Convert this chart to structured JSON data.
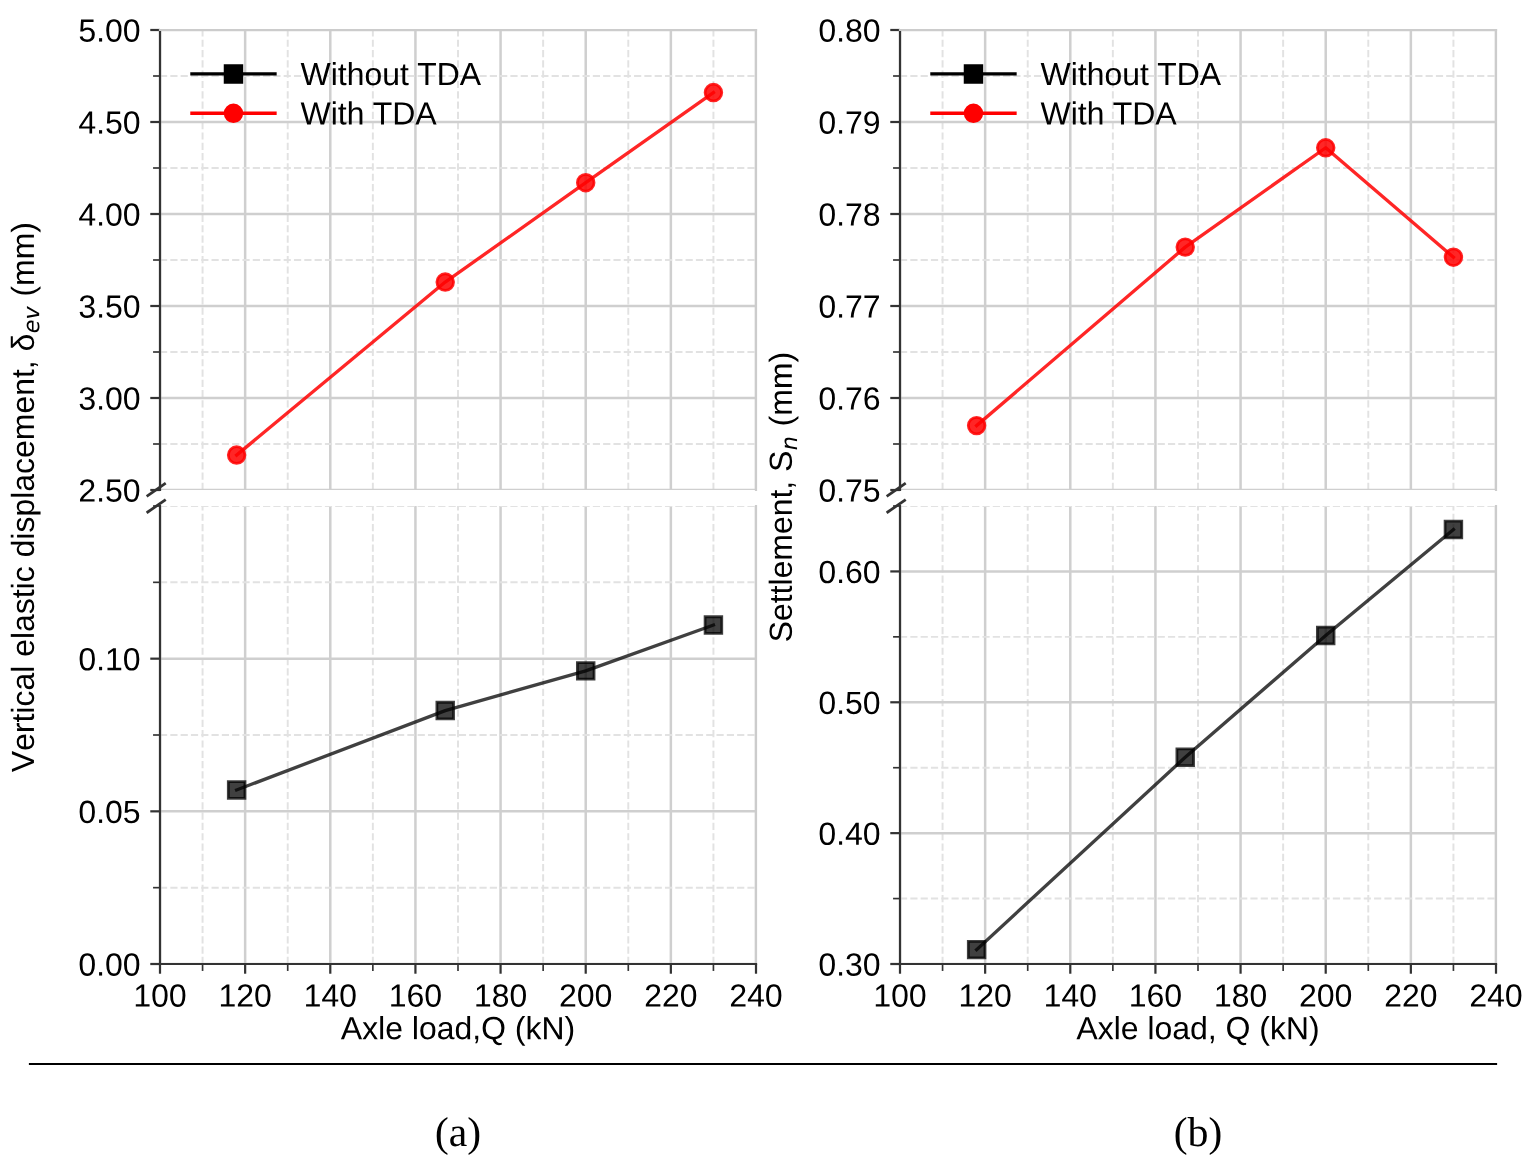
{
  "chart_data": [
    {
      "type": "line",
      "x": [
        118,
        167,
        200,
        230
      ],
      "xlim": [
        100,
        240
      ],
      "ylim": [
        2.5,
        5.0
      ],
      "yticks": [
        {
          "value": 2.5,
          "label": "2.50"
        },
        {
          "value": 3.0,
          "label": "3.00"
        },
        {
          "value": 3.5,
          "label": "3.50"
        },
        {
          "value": 4.0,
          "label": "4.00"
        },
        {
          "value": 4.5,
          "label": "4.50"
        },
        {
          "value": 5.0,
          "label": "5.00"
        }
      ],
      "tick_labels": "y",
      "grid": true,
      "legend": "top left",
      "series": [
        {
          "name": "Without TDA",
          "color": "#000000",
          "marker": "square",
          "values": [
            null,
            null,
            null,
            null
          ]
        },
        {
          "name": "With TDA",
          "color": "#ff0000",
          "marker": "circle",
          "values": [
            2.69,
            3.63,
            4.17,
            4.66
          ]
        }
      ]
    },
    {
      "type": "line",
      "x": [
        118,
        167,
        200,
        230
      ],
      "xlim": [
        100,
        240
      ],
      "xticks": [
        100,
        120,
        140,
        160,
        180,
        200,
        220,
        240
      ],
      "ylim": [
        0,
        0.15
      ],
      "yticks": [
        {
          "value": 0,
          "label": "0.00"
        },
        {
          "value": 0.05,
          "label": "0.05"
        },
        {
          "value": 0.1,
          "label": "0.10"
        }
      ],
      "xlabel": "Axle load,Q (kN)",
      "ylabel": "Vertical elastic displacement, δ$_{ev}$ (mm)",
      "grid": true,
      "annotations": [
        "(a)"
      ],
      "series": [
        {
          "color": "#000000",
          "marker": "square",
          "values": [
            0.057,
            0.083,
            0.096,
            0.111
          ]
        }
      ]
    },
    {
      "type": "line",
      "x": [
        118,
        167,
        200,
        230
      ],
      "xlim": [
        100,
        240
      ],
      "ylim": [
        0.75,
        0.8
      ],
      "yticks": [
        {
          "value": 0.75,
          "label": "0.75"
        },
        {
          "value": 0.76,
          "label": "0.76"
        },
        {
          "value": 0.77,
          "label": "0.77"
        },
        {
          "value": 0.78,
          "label": "0.78"
        },
        {
          "value": 0.79,
          "label": "0.79"
        },
        {
          "value": 0.8,
          "label": "0.80"
        }
      ],
      "tick_labels": "y",
      "grid": true,
      "legend": "top left",
      "series": [
        {
          "name": "Without TDA",
          "color": "#000000",
          "marker": "square",
          "values": [
            null,
            null,
            null,
            null
          ]
        },
        {
          "name": "With TDA",
          "color": "#ff0000",
          "marker": "circle",
          "values": [
            0.757,
            0.7764,
            0.7872,
            0.7753
          ]
        }
      ]
    },
    {
      "type": "line",
      "x": [
        118,
        167,
        200,
        230
      ],
      "xlim": [
        100,
        240
      ],
      "xticks": [
        100,
        120,
        140,
        160,
        180,
        200,
        220,
        240
      ],
      "ylim": [
        0.3,
        0.65
      ],
      "yticks": [
        {
          "value": 0.3,
          "label": "0.30"
        },
        {
          "value": 0.4,
          "label": "0.40"
        },
        {
          "value": 0.5,
          "label": "0.50"
        },
        {
          "value": 0.6,
          "label": "0.60"
        }
      ],
      "xlabel": "Axle load, Q (kN)",
      "ylabel": "Settlement, S$_{n}$ (mm)",
      "grid": true,
      "annotations": [
        "(b)"
      ],
      "series": [
        {
          "color": "#000000",
          "marker": "square",
          "values": [
            0.311,
            0.458,
            0.551,
            0.632
          ]
        }
      ]
    }
  ]
}
